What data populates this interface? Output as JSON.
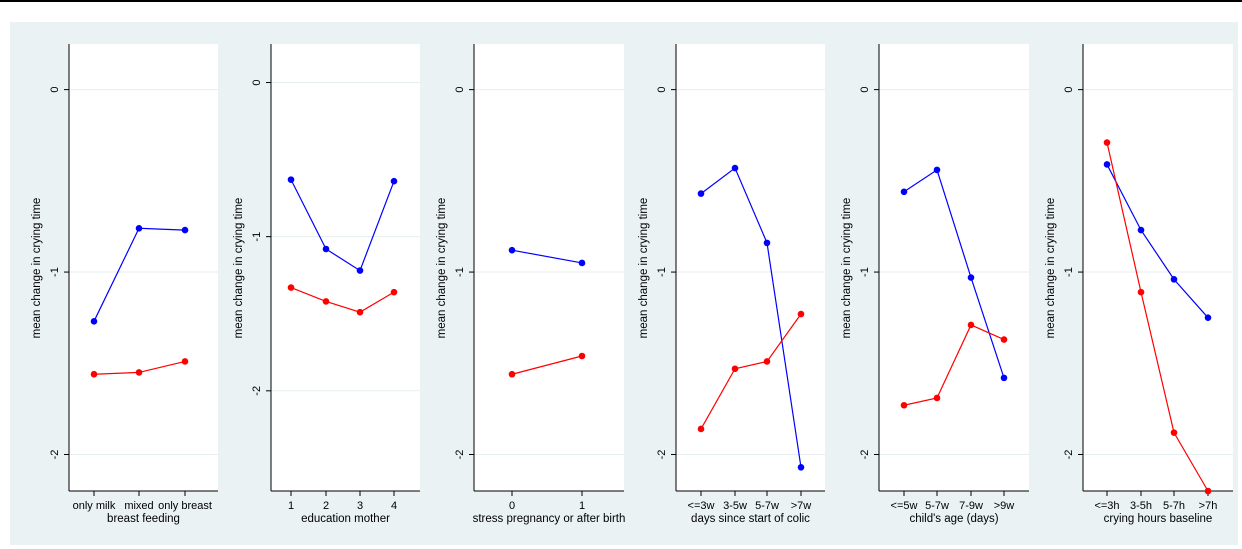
{
  "colors": {
    "series_blue": "#0000ff",
    "series_red": "#ff0000",
    "figure_bg": "#eaf2f3",
    "plot_bg": "#ffffff",
    "grid": "#e6eef0"
  },
  "chart_data": [
    {
      "type": "line",
      "xlabel": "breast feeding",
      "ylabel": "mean change in crying time",
      "categories": [
        "only milk",
        "mixed",
        "only breast"
      ],
      "ylim": [
        -2.2,
        0.25
      ],
      "yticks": [
        0,
        -1,
        -2
      ],
      "ytick_labels": [
        "0",
        "-1",
        "-2"
      ],
      "grid": true,
      "series": [
        {
          "color": "#0000ff",
          "values": [
            -1.27,
            -0.76,
            -0.77
          ]
        },
        {
          "color": "#ff0000",
          "values": [
            -1.56,
            -1.55,
            -1.49
          ]
        }
      ]
    },
    {
      "type": "line",
      "xlabel": "education mother",
      "ylabel": "mean change in crying time",
      "categories": [
        "1",
        "2",
        "3",
        "4"
      ],
      "ylim": [
        -2.65,
        0.25
      ],
      "yticks": [
        0,
        -1,
        -2
      ],
      "ytick_labels": [
        "0",
        "-1",
        "-2"
      ],
      "grid": true,
      "series": [
        {
          "color": "#0000ff",
          "values": [
            -0.63,
            -1.08,
            -1.22,
            -0.64
          ]
        },
        {
          "color": "#ff0000",
          "values": [
            -1.33,
            -1.42,
            -1.49,
            -1.36
          ]
        }
      ]
    },
    {
      "type": "line",
      "xlabel": "stress pregnancy or after birth",
      "ylabel": "mean change in crying time",
      "categories": [
        "0",
        "1"
      ],
      "ylim": [
        -2.2,
        0.25
      ],
      "yticks": [
        0,
        -1,
        -2
      ],
      "ytick_labels": [
        "0",
        "-1",
        "-2"
      ],
      "grid": true,
      "series": [
        {
          "color": "#0000ff",
          "values": [
            -0.88,
            -0.95
          ]
        },
        {
          "color": "#ff0000",
          "values": [
            -1.56,
            -1.46
          ]
        }
      ]
    },
    {
      "type": "line",
      "xlabel": "days since start of colic",
      "ylabel": "mean change in crying time",
      "categories": [
        "<=3w",
        "3-5w",
        "5-7w",
        ">7w"
      ],
      "ylim": [
        -2.2,
        0.25
      ],
      "yticks": [
        0,
        -1,
        -2
      ],
      "ytick_labels": [
        "0",
        "-1",
        "-2"
      ],
      "grid": true,
      "series": [
        {
          "color": "#0000ff",
          "values": [
            -0.57,
            -0.43,
            -0.84,
            -2.07
          ]
        },
        {
          "color": "#ff0000",
          "values": [
            -1.86,
            -1.53,
            -1.49,
            -1.23
          ]
        }
      ]
    },
    {
      "type": "line",
      "xlabel": "child's age (days)",
      "ylabel": "mean change in crying time",
      "categories": [
        "<=5w",
        "5-7w",
        "7-9w",
        ">9w"
      ],
      "ylim": [
        -2.2,
        0.25
      ],
      "yticks": [
        0,
        -1,
        -2
      ],
      "ytick_labels": [
        "0",
        "-1",
        "-2"
      ],
      "grid": true,
      "series": [
        {
          "color": "#0000ff",
          "values": [
            -0.56,
            -0.44,
            -1.03,
            -1.58
          ]
        },
        {
          "color": "#ff0000",
          "values": [
            -1.73,
            -1.69,
            -1.29,
            -1.37
          ]
        }
      ]
    },
    {
      "type": "line",
      "xlabel": "crying hours baseline",
      "ylabel": "mean change in crying time",
      "categories": [
        "<=3h",
        "3-5h",
        "5-7h",
        ">7h"
      ],
      "ylim": [
        -2.2,
        0.25
      ],
      "yticks": [
        0,
        -1,
        -2
      ],
      "ytick_labels": [
        "0",
        "-1",
        "-2"
      ],
      "grid": true,
      "series": [
        {
          "color": "#0000ff",
          "values": [
            -0.41,
            -0.77,
            -1.04,
            -1.25
          ]
        },
        {
          "color": "#ff0000",
          "values": [
            -0.29,
            -1.11,
            -1.88,
            -2.2
          ]
        }
      ]
    }
  ]
}
